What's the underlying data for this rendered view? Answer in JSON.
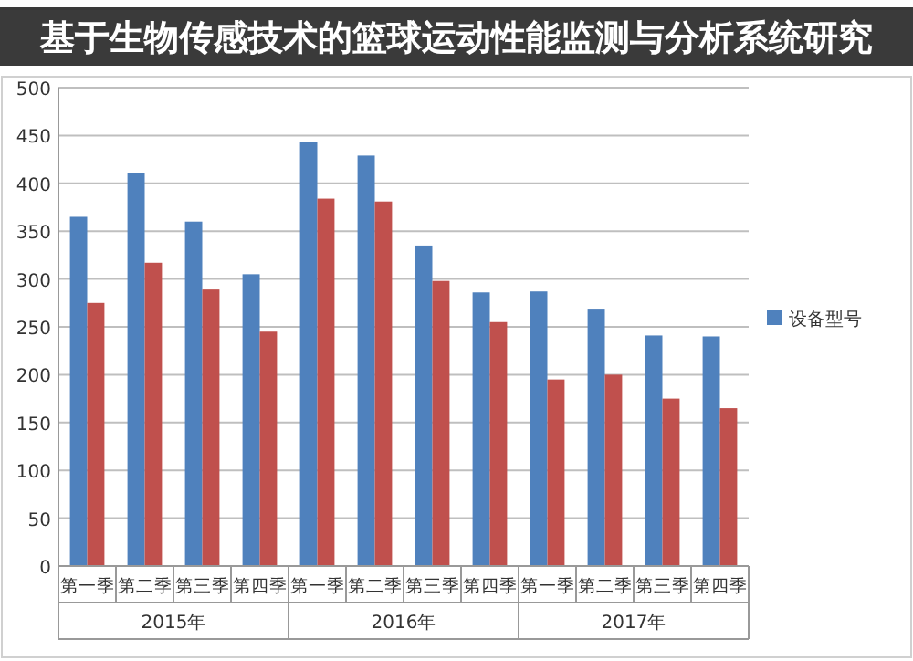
{
  "chart_data": {
    "type": "bar",
    "title": "基于生物传感技术的篮球运动性能监测与分析系统研究",
    "categories": [
      "第一季",
      "第二季",
      "第三季",
      "第四季",
      "第一季",
      "第二季",
      "第三季",
      "第四季",
      "第一季",
      "第二季",
      "第三季",
      "第四季"
    ],
    "annotations": [
      "2015年",
      "2016年",
      "2017年"
    ],
    "series": [
      {
        "name": "设备型号",
        "color": "#4f81bd",
        "values": [
          365,
          411,
          360,
          305,
          443,
          429,
          335,
          286,
          287,
          269,
          241,
          240
        ]
      },
      {
        "color": "#c0504d",
        "values": [
          275,
          317,
          289,
          245,
          384,
          381,
          298,
          255,
          195,
          200,
          175,
          165
        ]
      }
    ],
    "ylim": [
      0,
      500
    ],
    "yticks": [
      0,
      50,
      100,
      150,
      200,
      250,
      300,
      350,
      400,
      450,
      500
    ],
    "grid": "y",
    "legend": "right"
  }
}
